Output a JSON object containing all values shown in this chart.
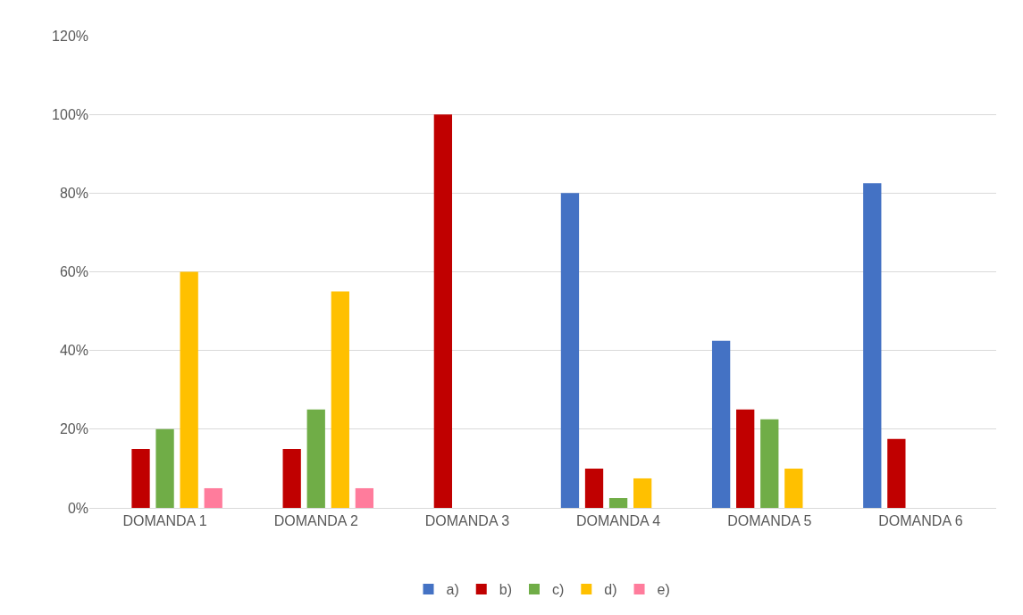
{
  "chart_data": {
    "type": "bar",
    "categories": [
      "DOMANDA 1",
      "DOMANDA 2",
      "DOMANDA 3",
      "DOMANDA 4",
      "DOMANDA 5",
      "DOMANDA 6"
    ],
    "series": [
      {
        "name": "a)",
        "color": "#4472c4",
        "values": [
          0,
          0,
          0,
          80,
          42.5,
          82.5
        ]
      },
      {
        "name": "b)",
        "color": "#c00000",
        "values": [
          15,
          15,
          100,
          10,
          25,
          17.5
        ]
      },
      {
        "name": "c)",
        "color": "#70ad47",
        "values": [
          20,
          25,
          0,
          2.5,
          22.5,
          0
        ]
      },
      {
        "name": "d)",
        "color": "#ffc000",
        "values": [
          60,
          55,
          0,
          7.5,
          10,
          0
        ]
      },
      {
        "name": "e)",
        "color": "#ff7c9c",
        "values": [
          5,
          5,
          0,
          0,
          0,
          0
        ]
      }
    ],
    "ylim": [
      0,
      120
    ],
    "yticks": [
      {
        "value": 0,
        "label": "0%"
      },
      {
        "value": 20,
        "label": "20%"
      },
      {
        "value": 40,
        "label": "40%"
      },
      {
        "value": 60,
        "label": "60%"
      },
      {
        "value": 80,
        "label": "80%"
      },
      {
        "value": 100,
        "label": "100%"
      },
      {
        "value": 120,
        "label": "120%"
      }
    ],
    "grid": "y",
    "legend": "bottom"
  }
}
